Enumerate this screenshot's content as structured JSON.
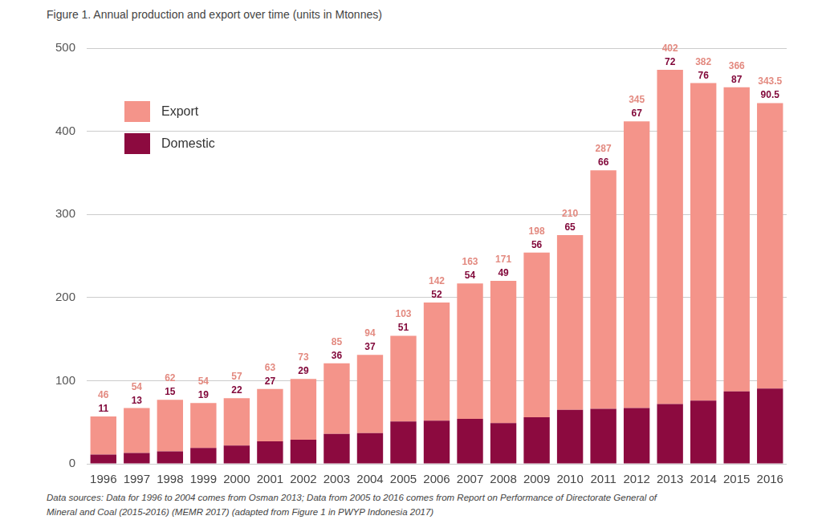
{
  "chart_data": {
    "type": "bar",
    "title": "Figure 1. Annual production and export over time (units in Mtonnes)",
    "source": "Data sources: Data for 1996 to 2004 comes from Osman 2013; Data from 2005 to 2016 comes from Report on Performance of Directorate General of Mineral and Coal (2015-2016) (MEMR 2017) (adapted from Figure 1 in PWYP Indonesia 2017)",
    "categories": [
      "1996",
      "1997",
      "1998",
      "1999",
      "2000",
      "2001",
      "2002",
      "2003",
      "2004",
      "2005",
      "2006",
      "2007",
      "2008",
      "2009",
      "2010",
      "2011",
      "2012",
      "2013",
      "2014",
      "2015",
      "2016"
    ],
    "series": [
      {
        "name": "Export",
        "color": "#f4948a",
        "values": [
          46,
          54,
          62,
          54,
          57,
          63,
          73,
          85,
          94,
          103,
          142,
          163,
          171,
          198,
          210,
          287,
          345,
          402,
          382,
          366,
          343.5
        ]
      },
      {
        "name": "Domestic",
        "color": "#8c0a3f",
        "values": [
          11,
          13,
          15,
          19,
          22,
          27,
          29,
          36,
          37,
          51,
          52,
          54,
          49,
          56,
          65,
          66,
          67,
          72,
          76,
          87,
          90.5
        ]
      }
    ],
    "ylim": [
      0,
      500
    ],
    "yticks": [
      0,
      100,
      200,
      300,
      400,
      500
    ],
    "grid": true,
    "stacked": true,
    "data_labels": true,
    "legend": "upper left"
  }
}
